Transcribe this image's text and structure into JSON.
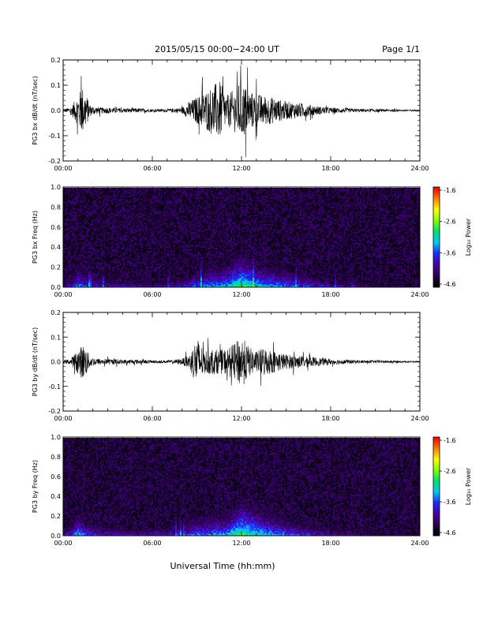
{
  "header": {
    "title": "2015/05/15  00:00−24:00 UT",
    "page": "Page 1/1"
  },
  "footer": {
    "xlabel": "Universal Time (hh:mm)"
  },
  "colors": {
    "waveform": "#000000",
    "colormap": [
      "#000000",
      "#2a0050",
      "#4a00a0",
      "#1a2cff",
      "#00c8ff",
      "#00e070",
      "#80ff00",
      "#ffff00",
      "#ff8000",
      "#ff0000"
    ]
  },
  "colorbar": {
    "label": "Log₁₀ Power",
    "ticks": [
      "-1.6",
      "-2.6",
      "-3.6",
      "-4.6"
    ],
    "range": [
      -4.6,
      -1.6
    ]
  },
  "chart_data": [
    {
      "type": "line",
      "id": "bx-waveform",
      "ylabel": "PG3 bx dB/dt (nT/sec)",
      "xlim": [
        0,
        24
      ],
      "ylim": [
        -0.2,
        0.2
      ],
      "xticks": [
        "00:00",
        "06:00",
        "12:00",
        "18:00",
        "24:00"
      ],
      "yticks": [
        "-0.2",
        "-0.1",
        "0.0",
        "0.1",
        "0.2"
      ],
      "x": [
        0,
        0.5,
        1.0,
        1.3,
        1.5,
        1.8,
        2.0,
        2.5,
        3.0,
        4.0,
        5.0,
        6.0,
        7.0,
        8.0,
        8.5,
        9.0,
        9.5,
        10.0,
        10.5,
        11.0,
        11.5,
        12.0,
        12.5,
        13.0,
        13.5,
        14.0,
        15.0,
        16.0,
        17.0,
        18.0,
        19.0,
        20.0,
        21.0,
        22.0,
        23.0,
        24.0
      ],
      "y": [
        0.01,
        0.02,
        0.1,
        0.16,
        0.12,
        0.04,
        0.03,
        0.02,
        0.02,
        0.015,
        0.015,
        0.01,
        0.01,
        0.02,
        0.06,
        0.09,
        0.12,
        0.16,
        0.2,
        0.1,
        0.14,
        0.2,
        0.13,
        0.11,
        0.1,
        0.09,
        0.06,
        0.05,
        0.03,
        0.02,
        0.015,
        0.01,
        0.01,
        0.008,
        0.005,
        0.005
      ]
    },
    {
      "type": "heatmap",
      "id": "bx-spectrogram",
      "ylabel": "PG3 bx Freq (Hz)",
      "xlim": [
        0,
        24
      ],
      "ylim": [
        0,
        1
      ],
      "xticks": [
        "00:00",
        "06:00",
        "12:00",
        "18:00",
        "24:00"
      ],
      "yticks": [
        "0.0",
        "0.2",
        "0.4",
        "0.6",
        "0.8",
        "1.0"
      ],
      "x": [
        0,
        0.5,
        1.0,
        1.5,
        2.0,
        3.0,
        4.0,
        5.0,
        6.0,
        7.0,
        8.0,
        9.0,
        10.0,
        11.0,
        12.0,
        13.0,
        14.0,
        15.0,
        16.0,
        18.0,
        20.0,
        22.0,
        24.0
      ],
      "low_freq_power": [
        -3.8,
        -3.6,
        -3.0,
        -3.3,
        -3.4,
        -3.6,
        -3.6,
        -3.7,
        -3.7,
        -3.7,
        -3.5,
        -3.2,
        -3.0,
        -2.9,
        -2.5,
        -2.8,
        -3.0,
        -3.1,
        -3.3,
        -3.6,
        -3.9,
        -4.1,
        -4.3
      ]
    },
    {
      "type": "line",
      "id": "by-waveform",
      "ylabel": "PG3 by dB/dt (nT/sec)",
      "xlim": [
        0,
        24
      ],
      "ylim": [
        -0.2,
        0.2
      ],
      "xticks": [
        "00:00",
        "06:00",
        "12:00",
        "18:00",
        "24:00"
      ],
      "yticks": [
        "-0.2",
        "-0.1",
        "0.0",
        "0.1",
        "0.2"
      ],
      "x": [
        0,
        0.5,
        1.0,
        1.3,
        1.5,
        1.8,
        2.0,
        2.5,
        3.0,
        4.0,
        5.0,
        6.0,
        7.0,
        8.0,
        8.5,
        9.0,
        9.5,
        10.0,
        10.5,
        11.0,
        11.5,
        12.0,
        12.5,
        13.0,
        13.5,
        14.0,
        15.0,
        16.0,
        17.0,
        18.0,
        19.0,
        20.0,
        21.0,
        22.0,
        23.0,
        24.0
      ],
      "y": [
        0.01,
        0.02,
        0.08,
        0.12,
        0.1,
        0.04,
        0.03,
        0.02,
        0.02,
        0.015,
        0.015,
        0.01,
        0.01,
        0.02,
        0.05,
        0.17,
        0.08,
        0.09,
        0.08,
        0.09,
        0.12,
        0.18,
        0.1,
        0.07,
        0.1,
        0.08,
        0.05,
        0.04,
        0.03,
        0.02,
        0.015,
        0.01,
        0.01,
        0.008,
        0.005,
        0.005
      ]
    },
    {
      "type": "heatmap",
      "id": "by-spectrogram",
      "ylabel": "PG3 by Freq (Hz)",
      "xlim": [
        0,
        24
      ],
      "ylim": [
        0,
        1
      ],
      "xticks": [
        "00:00",
        "06:00",
        "12:00",
        "18:00",
        "24:00"
      ],
      "yticks": [
        "0.0",
        "0.2",
        "0.4",
        "0.6",
        "0.8",
        "1.0"
      ],
      "x": [
        0,
        0.5,
        1.0,
        1.5,
        2.0,
        3.0,
        4.0,
        5.0,
        6.0,
        7.0,
        8.0,
        9.0,
        10.0,
        11.0,
        12.0,
        13.0,
        14.0,
        15.0,
        16.0,
        18.0,
        20.0,
        22.0,
        24.0
      ],
      "low_freq_power": [
        -3.7,
        -3.4,
        -2.9,
        -3.2,
        -3.3,
        -3.5,
        -3.5,
        -3.6,
        -3.5,
        -3.5,
        -3.3,
        -3.1,
        -3.0,
        -2.9,
        -2.4,
        -2.7,
        -2.9,
        -3.1,
        -3.3,
        -3.6,
        -3.8,
        -4.0,
        -4.2
      ]
    }
  ]
}
